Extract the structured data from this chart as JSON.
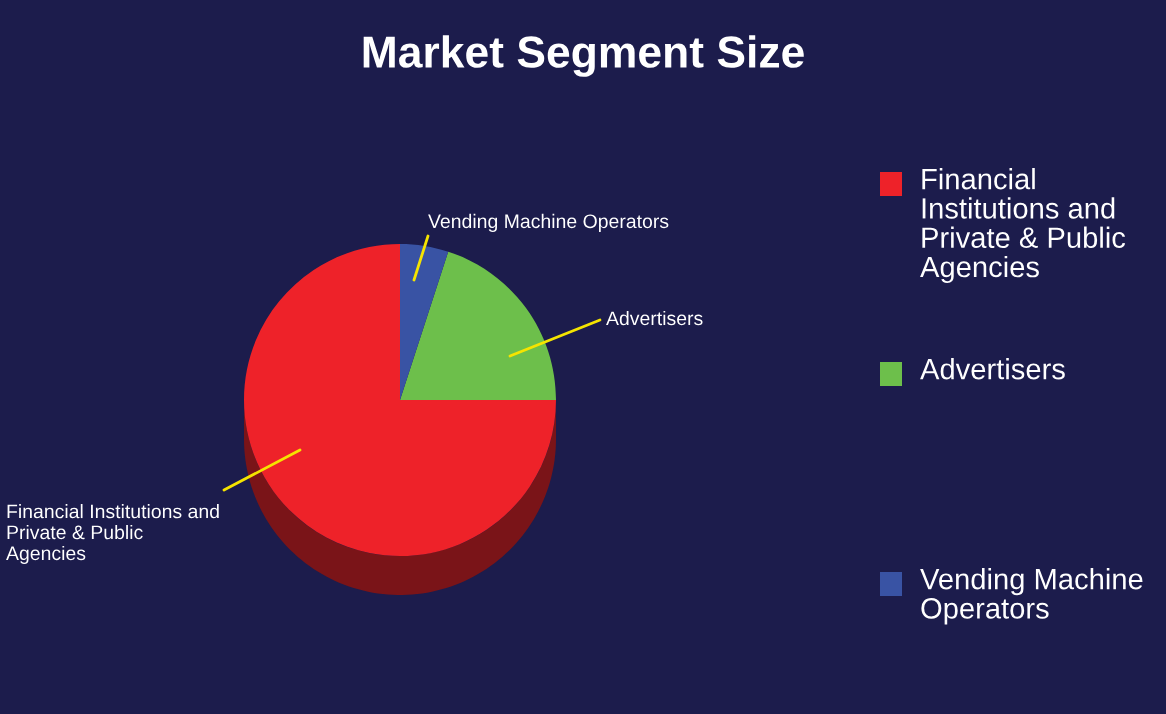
{
  "chart_data": {
    "type": "pie",
    "title": "Market Segment Size",
    "categories": [
      "Financial Institutions and Private & Public Agencies",
      "Advertisers",
      "Vending Machine Operators"
    ],
    "values": [
      75,
      20,
      5
    ],
    "colors": [
      "#ee2229",
      "#6dbf4b",
      "#3953a4"
    ],
    "legend": "right"
  }
}
